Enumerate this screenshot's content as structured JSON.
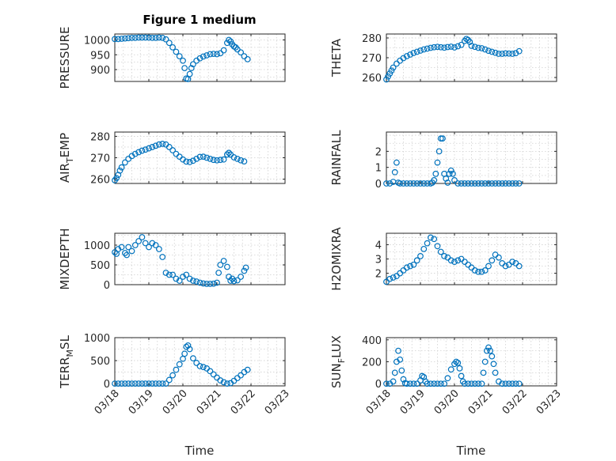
{
  "figure": {
    "title": "Figure 1 medium",
    "marker_color": "#0072BD"
  },
  "chart_data": [
    {
      "type": "scatter",
      "title": "Figure 1 medium",
      "ylabel": "PRESSURE",
      "xlabel": "",
      "xlim": [
        0,
        5
      ],
      "ylim": [
        860,
        1020
      ],
      "yticks": [
        900,
        950,
        1000
      ],
      "xticks": [
        0,
        1,
        2,
        3,
        4,
        5
      ],
      "xticklabels": [
        "03/18",
        "03/19",
        "03/20",
        "03/21",
        "03/22",
        "03/23"
      ],
      "grid": true,
      "x": [
        0,
        0.1,
        0.2,
        0.3,
        0.4,
        0.5,
        0.6,
        0.7,
        0.8,
        0.9,
        1.0,
        1.1,
        1.2,
        1.3,
        1.4,
        1.5,
        1.6,
        1.7,
        1.8,
        1.9,
        2.0,
        2.05,
        2.1,
        2.15,
        2.2,
        2.25,
        2.3,
        2.4,
        2.5,
        2.6,
        2.7,
        2.8,
        2.9,
        3.0,
        3.1,
        3.2,
        3.3,
        3.35,
        3.4,
        3.45,
        3.5,
        3.55,
        3.6,
        3.7,
        3.8,
        3.9
      ],
      "y": [
        1003,
        1003,
        1004,
        1005,
        1006,
        1007,
        1007,
        1008,
        1008,
        1008,
        1008,
        1007,
        1007,
        1008,
        1007,
        1002,
        990,
        975,
        960,
        945,
        930,
        905,
        870,
        868,
        885,
        905,
        918,
        930,
        938,
        944,
        948,
        952,
        953,
        952,
        955,
        965,
        990,
        1000,
        995,
        985,
        978,
        975,
        968,
        958,
        945,
        935
      ]
    },
    {
      "type": "scatter",
      "ylabel": "THETA",
      "xlabel": "",
      "xlim": [
        0,
        5
      ],
      "ylim": [
        258,
        282
      ],
      "yticks": [
        260,
        270,
        280
      ],
      "xticks": [
        0,
        1,
        2,
        3,
        4,
        5
      ],
      "xticklabels": [
        "03/18",
        "03/19",
        "03/20",
        "03/21",
        "03/22",
        "03/23"
      ],
      "grid": true,
      "x": [
        0,
        0.05,
        0.1,
        0.15,
        0.2,
        0.3,
        0.4,
        0.5,
        0.6,
        0.7,
        0.8,
        0.9,
        1.0,
        1.1,
        1.2,
        1.3,
        1.4,
        1.5,
        1.6,
        1.7,
        1.8,
        1.9,
        2.0,
        2.1,
        2.2,
        2.3,
        2.35,
        2.4,
        2.45,
        2.5,
        2.6,
        2.7,
        2.8,
        2.9,
        3.0,
        3.1,
        3.2,
        3.3,
        3.4,
        3.5,
        3.6,
        3.7,
        3.8,
        3.9
      ],
      "y": [
        259,
        260.5,
        262,
        263.5,
        265,
        267,
        268.5,
        269.8,
        270.8,
        271.6,
        272.4,
        273,
        273.6,
        274.2,
        274.6,
        275,
        275.3,
        275.5,
        275.3,
        275.1,
        275.4,
        275.6,
        275.2,
        275.8,
        276.5,
        278.5,
        279.5,
        279,
        278,
        276,
        275.5,
        275,
        274.8,
        274.2,
        273.5,
        273,
        272.5,
        272,
        272,
        272.2,
        272.1,
        272,
        272.3,
        273.3
      ]
    },
    {
      "type": "scatter",
      "ylabel": "AIR_TEMP",
      "xlabel": "",
      "xlim": [
        0,
        5
      ],
      "ylim": [
        258,
        282
      ],
      "yticks": [
        260,
        270,
        280
      ],
      "xticks": [
        0,
        1,
        2,
        3,
        4,
        5
      ],
      "xticklabels": [
        "03/18",
        "03/19",
        "03/20",
        "03/21",
        "03/22",
        "03/23"
      ],
      "grid": true,
      "x": [
        0,
        0.05,
        0.1,
        0.15,
        0.2,
        0.3,
        0.4,
        0.5,
        0.6,
        0.7,
        0.8,
        0.9,
        1.0,
        1.1,
        1.2,
        1.3,
        1.4,
        1.5,
        1.6,
        1.7,
        1.8,
        1.9,
        2.0,
        2.1,
        2.2,
        2.3,
        2.4,
        2.5,
        2.6,
        2.7,
        2.8,
        2.9,
        3.0,
        3.1,
        3.2,
        3.3,
        3.35,
        3.4,
        3.5,
        3.6,
        3.7,
        3.8
      ],
      "y": [
        259.5,
        260.5,
        262,
        264,
        265.5,
        267.8,
        269.5,
        270.8,
        271.8,
        272.6,
        273.3,
        273.8,
        274.4,
        275,
        275.6,
        276.2,
        276.5,
        276.2,
        275,
        273.5,
        271.8,
        270.5,
        269.2,
        268.2,
        268,
        268.6,
        269.5,
        270.4,
        270.5,
        270,
        269.5,
        269,
        268.8,
        269,
        269.2,
        271.5,
        272.3,
        271.5,
        270.2,
        269.5,
        268.8,
        268.3
      ]
    },
    {
      "type": "scatter",
      "ylabel": "RAINFALL",
      "xlabel": "",
      "xlim": [
        0,
        5
      ],
      "ylim": [
        0,
        3.2
      ],
      "yticks": [
        0,
        1,
        2
      ],
      "xticks": [
        0,
        1,
        2,
        3,
        4,
        5
      ],
      "xticklabels": [
        "03/18",
        "03/19",
        "03/20",
        "03/21",
        "03/22",
        "03/23"
      ],
      "grid": true,
      "x": [
        0,
        0.1,
        0.2,
        0.25,
        0.3,
        0.35,
        0.4,
        0.5,
        0.6,
        0.7,
        0.8,
        0.9,
        1.0,
        1.1,
        1.2,
        1.3,
        1.35,
        1.4,
        1.45,
        1.5,
        1.55,
        1.6,
        1.65,
        1.7,
        1.75,
        1.8,
        1.85,
        1.9,
        1.95,
        2.0,
        2.1,
        2.2,
        2.3,
        2.4,
        2.5,
        2.6,
        2.7,
        2.8,
        2.9,
        3.0,
        3.1,
        3.2,
        3.3,
        3.4,
        3.5,
        3.6,
        3.7,
        3.8,
        3.9
      ],
      "y": [
        0,
        0,
        0.1,
        0.7,
        1.3,
        0.05,
        0,
        0,
        0,
        0,
        0,
        0,
        0,
        0,
        0,
        0,
        0.05,
        0.2,
        0.6,
        1.3,
        2.0,
        2.8,
        2.8,
        0.6,
        0.3,
        0.05,
        0.6,
        0.8,
        0.6,
        0.2,
        0,
        0,
        0,
        0,
        0,
        0,
        0,
        0,
        0,
        0,
        0,
        0,
        0,
        0,
        0,
        0,
        0,
        0,
        0
      ]
    },
    {
      "type": "scatter",
      "ylabel": "MIXDEPTH",
      "xlabel": "",
      "xlim": [
        0,
        5
      ],
      "ylim": [
        0,
        1300
      ],
      "yticks": [
        0,
        500,
        1000
      ],
      "xticks": [
        0,
        1,
        2,
        3,
        4,
        5
      ],
      "xticklabels": [
        "03/18",
        "03/19",
        "03/20",
        "03/21",
        "03/22",
        "03/23"
      ],
      "grid": true,
      "x": [
        0,
        0.05,
        0.1,
        0.2,
        0.3,
        0.35,
        0.4,
        0.5,
        0.6,
        0.7,
        0.8,
        0.9,
        1.0,
        1.1,
        1.2,
        1.3,
        1.4,
        1.5,
        1.6,
        1.7,
        1.8,
        1.9,
        2.0,
        2.1,
        2.2,
        2.3,
        2.4,
        2.5,
        2.6,
        2.7,
        2.8,
        2.9,
        3.0,
        3.05,
        3.1,
        3.2,
        3.3,
        3.35,
        3.4,
        3.45,
        3.5,
        3.6,
        3.7,
        3.8,
        3.85
      ],
      "y": [
        820,
        780,
        900,
        950,
        800,
        750,
        950,
        850,
        1000,
        1100,
        1200,
        1050,
        950,
        1050,
        1000,
        900,
        700,
        300,
        250,
        250,
        150,
        100,
        200,
        250,
        150,
        100,
        80,
        50,
        30,
        20,
        20,
        25,
        50,
        300,
        500,
        600,
        450,
        200,
        100,
        150,
        90,
        110,
        200,
        350,
        430
      ]
    },
    {
      "type": "scatter",
      "ylabel": "H2OMIXRA",
      "xlabel": "",
      "xlim": [
        0,
        5
      ],
      "ylim": [
        1.2,
        4.8
      ],
      "yticks": [
        2,
        3,
        4
      ],
      "xticks": [
        0,
        1,
        2,
        3,
        4,
        5
      ],
      "xticklabels": [
        "03/18",
        "03/19",
        "03/20",
        "03/21",
        "03/22",
        "03/23"
      ],
      "grid": true,
      "x": [
        0,
        0.1,
        0.2,
        0.3,
        0.4,
        0.5,
        0.6,
        0.7,
        0.8,
        0.9,
        1.0,
        1.1,
        1.2,
        1.3,
        1.4,
        1.5,
        1.6,
        1.7,
        1.8,
        1.9,
        2.0,
        2.1,
        2.2,
        2.3,
        2.4,
        2.5,
        2.6,
        2.7,
        2.8,
        2.9,
        3.0,
        3.1,
        3.2,
        3.3,
        3.4,
        3.5,
        3.6,
        3.7,
        3.8,
        3.9
      ],
      "y": [
        1.4,
        1.6,
        1.7,
        1.8,
        2.0,
        2.2,
        2.4,
        2.5,
        2.6,
        2.9,
        3.2,
        3.7,
        4.1,
        4.5,
        4.4,
        3.9,
        3.5,
        3.2,
        3.1,
        2.9,
        2.8,
        2.9,
        3.0,
        2.8,
        2.6,
        2.4,
        2.2,
        2.1,
        2.1,
        2.2,
        2.5,
        2.9,
        3.3,
        3.1,
        2.7,
        2.5,
        2.6,
        2.8,
        2.7,
        2.5
      ]
    },
    {
      "type": "scatter",
      "ylabel": "TERR_MSL",
      "xlabel": "Time",
      "xlim": [
        0,
        5
      ],
      "ylim": [
        -50,
        1000
      ],
      "yticks": [
        0,
        500,
        1000
      ],
      "xticks": [
        0,
        1,
        2,
        3,
        4,
        5
      ],
      "xticklabels": [
        "03/18",
        "03/19",
        "03/20",
        "03/21",
        "03/22",
        "03/23"
      ],
      "grid": true,
      "x": [
        0,
        0.1,
        0.2,
        0.3,
        0.4,
        0.5,
        0.6,
        0.7,
        0.8,
        0.9,
        1.0,
        1.1,
        1.2,
        1.3,
        1.4,
        1.5,
        1.6,
        1.7,
        1.8,
        1.9,
        2.0,
        2.05,
        2.1,
        2.15,
        2.2,
        2.3,
        2.4,
        2.5,
        2.6,
        2.7,
        2.8,
        2.9,
        3.0,
        3.1,
        3.2,
        3.3,
        3.4,
        3.5,
        3.6,
        3.7,
        3.8,
        3.9
      ],
      "y": [
        0,
        0,
        0,
        0,
        0,
        0,
        0,
        0,
        0,
        0,
        0,
        0,
        0,
        0,
        0,
        0,
        80,
        180,
        300,
        420,
        540,
        650,
        800,
        830,
        750,
        550,
        450,
        380,
        360,
        330,
        270,
        200,
        130,
        70,
        30,
        0,
        10,
        60,
        120,
        180,
        250,
        300
      ]
    },
    {
      "type": "scatter",
      "ylabel": "SUN_FLUX",
      "xlabel": "Time",
      "xlim": [
        0,
        5
      ],
      "ylim": [
        -20,
        420
      ],
      "yticks": [
        0,
        200,
        400
      ],
      "xticks": [
        0,
        1,
        2,
        3,
        4,
        5
      ],
      "xticklabels": [
        "03/18",
        "03/19",
        "03/20",
        "03/21",
        "03/22",
        "03/23"
      ],
      "grid": true,
      "x": [
        0,
        0.1,
        0.2,
        0.25,
        0.3,
        0.35,
        0.4,
        0.45,
        0.5,
        0.55,
        0.6,
        0.7,
        0.8,
        0.9,
        1.0,
        1.05,
        1.1,
        1.15,
        1.2,
        1.3,
        1.4,
        1.5,
        1.6,
        1.7,
        1.8,
        1.9,
        2.0,
        2.05,
        2.1,
        2.15,
        2.2,
        2.25,
        2.3,
        2.4,
        2.5,
        2.6,
        2.7,
        2.8,
        2.85,
        2.9,
        2.95,
        3.0,
        3.05,
        3.1,
        3.15,
        3.2,
        3.3,
        3.4,
        3.5,
        3.6,
        3.7,
        3.8,
        3.9
      ],
      "y": [
        0,
        0,
        20,
        100,
        200,
        300,
        220,
        120,
        40,
        5,
        0,
        0,
        0,
        0,
        30,
        70,
        60,
        20,
        0,
        0,
        0,
        0,
        0,
        0,
        50,
        130,
        180,
        200,
        190,
        140,
        70,
        20,
        0,
        0,
        0,
        0,
        0,
        0,
        100,
        200,
        300,
        330,
        300,
        250,
        180,
        100,
        20,
        0,
        0,
        0,
        0,
        0,
        0
      ]
    }
  ]
}
